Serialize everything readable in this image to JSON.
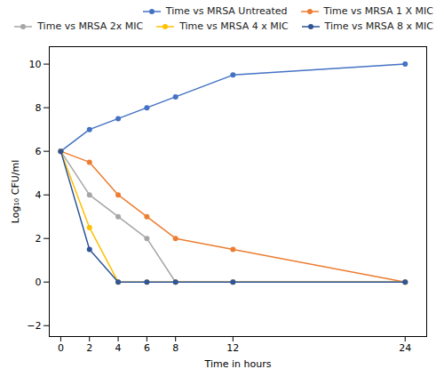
{
  "chart_data": {
    "type": "line",
    "xlabel": "Time in hours",
    "ylabel": "Log₁₀ CFU/ml",
    "x": [
      0,
      2,
      4,
      6,
      8,
      12,
      24
    ],
    "series": [
      {
        "name": "Time vs MRSA Untreated",
        "color": "#4472C4",
        "values": [
          6,
          7,
          7.5,
          8,
          8.5,
          9.5,
          10
        ]
      },
      {
        "name": "Time vs MRSA 1 X MIC",
        "color": "#ED7D31",
        "values": [
          6,
          5.5,
          4,
          3,
          2,
          1.5,
          0
        ]
      },
      {
        "name": "Time vs MRSA 2x MIC",
        "color": "#A6A6A6",
        "values": [
          6,
          4,
          3,
          2,
          0,
          0,
          0
        ]
      },
      {
        "name": "Time vs MRSA 4 x MIC",
        "color": "#FFC000",
        "values": [
          6,
          2.5,
          0,
          0,
          0,
          0,
          0
        ]
      },
      {
        "name": "Time vs MRSA 8 x MIC",
        "color": "#2F5597",
        "values": [
          6,
          1.5,
          0,
          0,
          0,
          0,
          0
        ]
      }
    ],
    "xlim": [
      -0.8,
      25.5
    ],
    "ylim": [
      -2.5,
      10.8
    ],
    "xticks": [
      0,
      2,
      4,
      6,
      8,
      12,
      24
    ],
    "yticks": [
      -2,
      0,
      2,
      4,
      6,
      8,
      10
    ],
    "marker": "circle",
    "grid": false,
    "legend": "upper right"
  }
}
